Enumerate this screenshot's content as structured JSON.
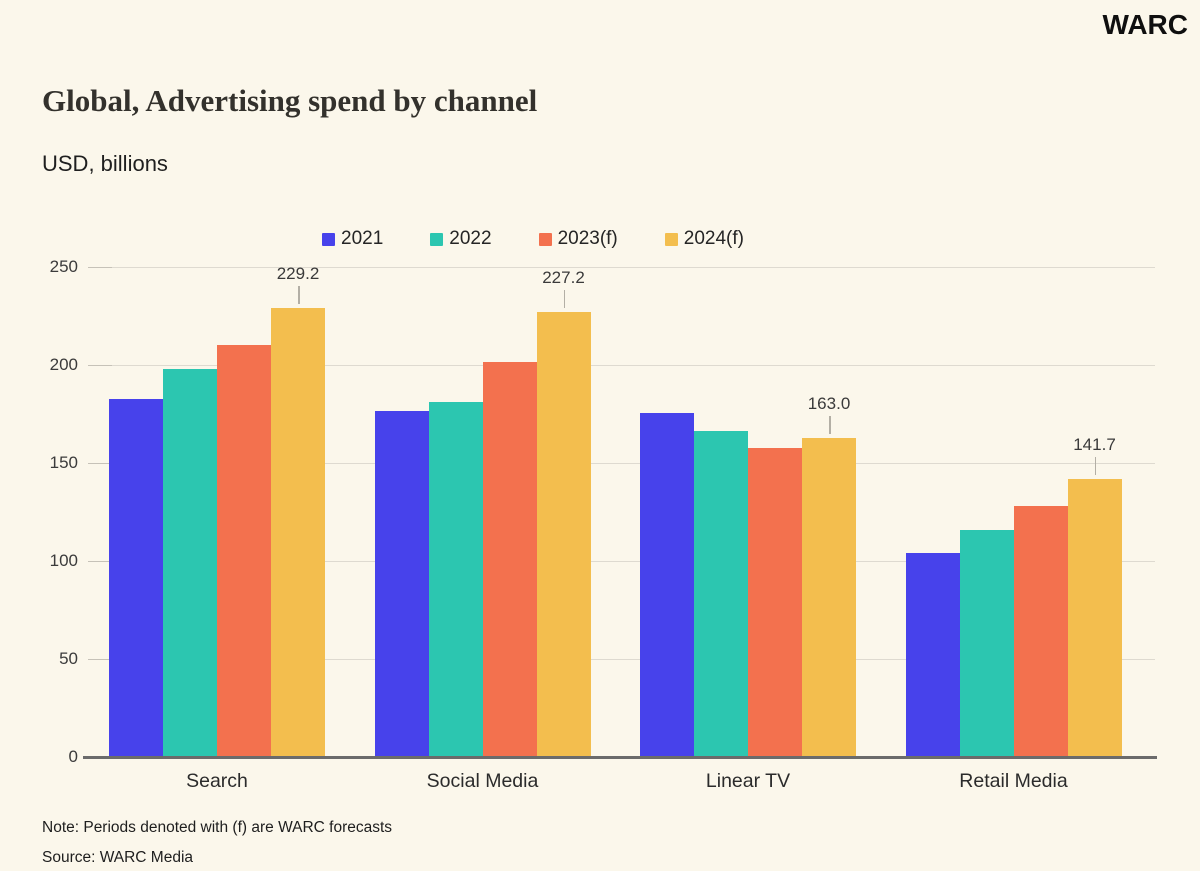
{
  "logo": {
    "text": "WARC"
  },
  "chart_data": {
    "type": "bar",
    "title": "Global, Advertising spend by channel",
    "units": "USD, billions",
    "categories": [
      "Search",
      "Social Media",
      "Linear TV",
      "Retail Media"
    ],
    "series": [
      {
        "name": "2021",
        "color": "#4742EB",
        "values": [
          182.7,
          176.7,
          175.5,
          104.0
        ]
      },
      {
        "name": "2022",
        "color": "#2CC6B0",
        "values": [
          197.8,
          181.0,
          166.2,
          116.0
        ]
      },
      {
        "name": "2023(f)",
        "color": "#F3714E",
        "values": [
          210.3,
          201.7,
          157.5,
          128.2
        ]
      },
      {
        "name": "2024(f)",
        "color": "#F3BE4E",
        "values": [
          229.2,
          227.2,
          163.0,
          141.7
        ],
        "data_labels": [
          "229.2",
          "227.2",
          "163.0",
          "141.7"
        ]
      }
    ],
    "ylim": [
      0,
      250
    ],
    "yticks": [
      0,
      50,
      100,
      150,
      200,
      250
    ],
    "grid": true,
    "legend_position": "top",
    "note": "Note: Periods denoted with (f) are WARC forecasts",
    "source": "Source: WARC Media"
  }
}
